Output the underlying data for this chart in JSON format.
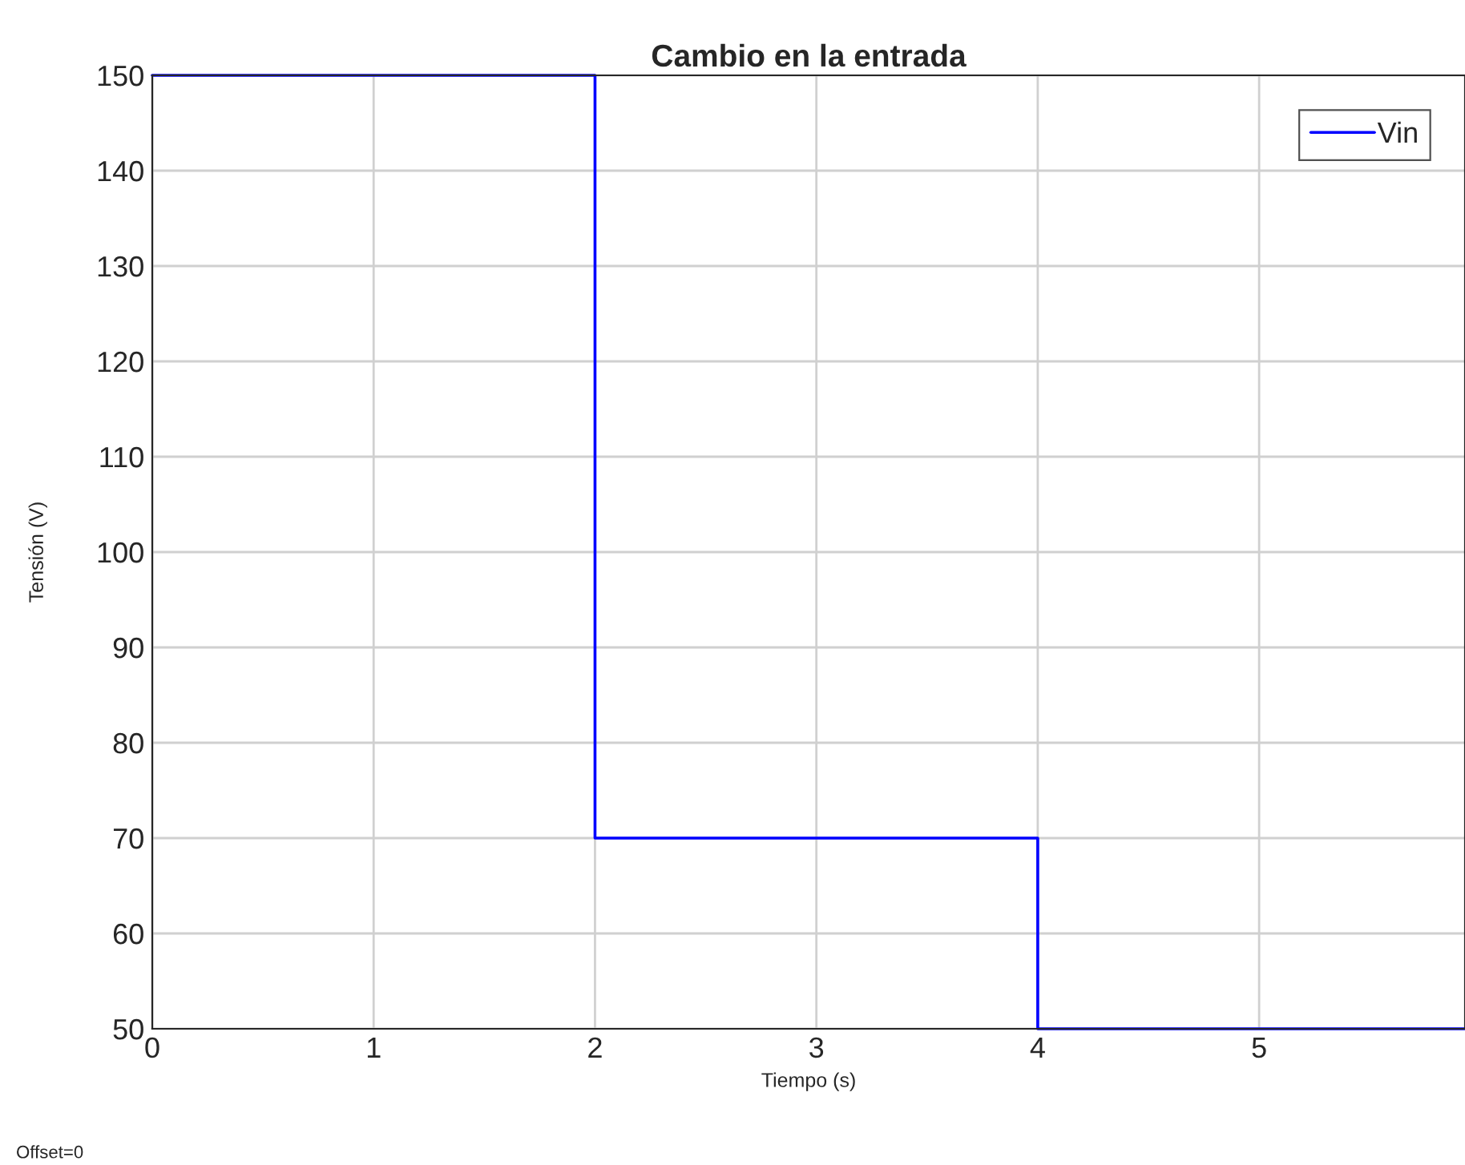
{
  "chart_data": {
    "type": "step",
    "title": "Cambio en la entrada",
    "xlabel": "Tiempo (s)",
    "ylabel": "Tensión (V)",
    "x": [
      0,
      2,
      4,
      5.93
    ],
    "series": [
      {
        "name": "Vin",
        "color": "#0000ff",
        "values": [
          150,
          70,
          50,
          50
        ]
      }
    ],
    "xlim": [
      0,
      5.93
    ],
    "xticks": [
      0,
      1,
      2,
      3,
      4,
      5
    ],
    "ylim": [
      50,
      150
    ],
    "yticks": [
      50,
      60,
      70,
      80,
      90,
      100,
      110,
      120,
      130,
      140,
      150
    ],
    "grid": true,
    "legend": "top right",
    "annotations": [
      "Offset=0"
    ]
  }
}
